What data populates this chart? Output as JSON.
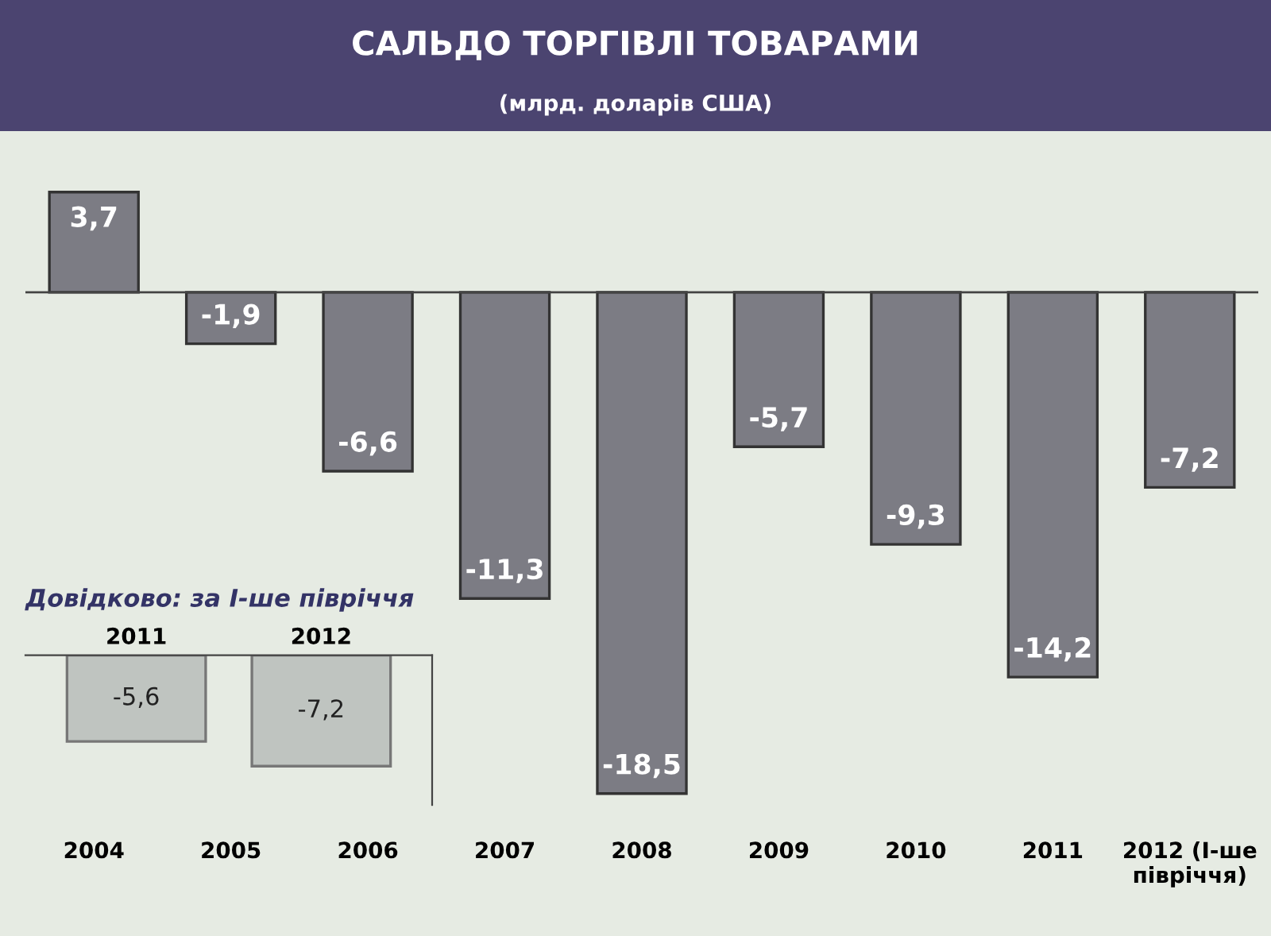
{
  "chart_data": [
    {
      "type": "bar",
      "title": "САЛЬДО ТОРГІВЛІ ТОВАРАМИ",
      "subtitle": "(млрд. доларів США)",
      "categories": [
        "2004",
        "2005",
        "2006",
        "2007",
        "2008",
        "2009",
        "2010",
        "2011",
        "2012 (І-ше\nпівріччя)"
      ],
      "values": [
        3.7,
        -1.9,
        -6.6,
        -11.3,
        -18.5,
        -5.7,
        -9.3,
        -14.2,
        -7.2
      ],
      "value_labels": [
        "3,7",
        "-1,9",
        "-6,6",
        "-11,3",
        "-18,5",
        "-5,7",
        "-9,3",
        "-14,2",
        "-7,2"
      ],
      "color": "#7c7c84",
      "grid": false,
      "legend": false
    },
    {
      "type": "bar",
      "title": "Довідково: за І-ше півріччя",
      "categories": [
        "2011",
        "2012"
      ],
      "values": [
        -5.6,
        -7.2
      ],
      "value_labels": [
        "-5,6",
        "-7,2"
      ],
      "color": "#bfc4c0",
      "grid": false,
      "legend": false
    }
  ]
}
